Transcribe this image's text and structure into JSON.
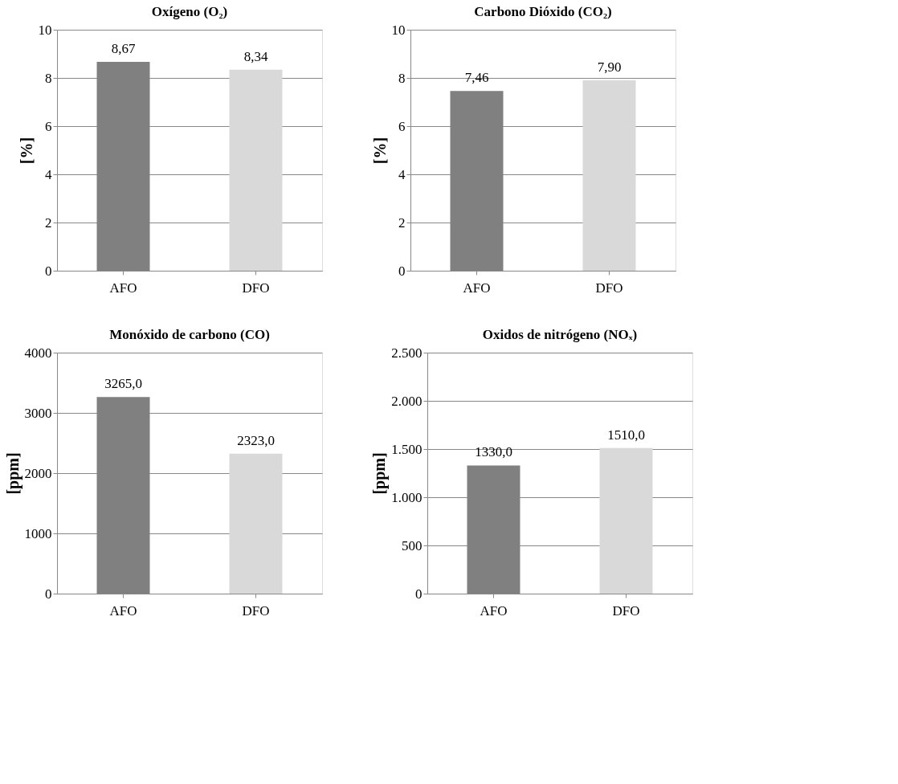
{
  "chart_data": [
    {
      "type": "bar",
      "title": "Oxígeno (O₂)",
      "ylabel": "[%]",
      "categories": [
        "AFO",
        "DFO"
      ],
      "values": [
        8.67,
        8.34
      ],
      "colors": [
        "#808080",
        "#d9d9d9"
      ],
      "value_labels": [
        "8,67",
        "8,34"
      ],
      "ylim": [
        0,
        10
      ],
      "yticks": [
        0,
        2,
        4,
        6,
        8,
        10
      ],
      "grid": "y"
    },
    {
      "type": "bar",
      "title": "Carbono Dióxido (CO₂)",
      "ylabel": "[%]",
      "categories": [
        "AFO",
        "DFO"
      ],
      "values": [
        7.46,
        7.9
      ],
      "colors": [
        "#808080",
        "#d9d9d9"
      ],
      "value_labels": [
        "7,46",
        "7,90"
      ],
      "ylim": [
        0,
        10
      ],
      "yticks": [
        0,
        2,
        4,
        6,
        8,
        10
      ],
      "grid": "y"
    },
    {
      "type": "bar",
      "title": "Monóxido de carbono (CO)",
      "ylabel": "[ppm]",
      "categories": [
        "AFO",
        "DFO"
      ],
      "values": [
        3265.0,
        2323.0
      ],
      "colors": [
        "#808080",
        "#d9d9d9"
      ],
      "value_labels": [
        "3265,0",
        "2323,0"
      ],
      "ylim": [
        0,
        4000
      ],
      "yticks": [
        0,
        1000,
        2000,
        3000,
        4000
      ],
      "grid": "y"
    },
    {
      "type": "bar",
      "title": "Oxidos de nitrógeno (NOₓ)",
      "ylabel": "[ppm]",
      "categories": [
        "AFO",
        "DFO"
      ],
      "values": [
        1330.0,
        1510.0
      ],
      "colors": [
        "#808080",
        "#d9d9d9"
      ],
      "value_labels": [
        "1330,0",
        "1510,0"
      ],
      "ylim": [
        0,
        2500
      ],
      "yticks": [
        0,
        {
          "value": 500,
          "label": "500"
        },
        {
          "value": 1000,
          "label": "1.000"
        },
        {
          "value": 1500,
          "label": "1.500"
        },
        {
          "value": 2000,
          "label": "2.000"
        },
        {
          "value": 2500,
          "label": "2.500"
        }
      ],
      "grid": "y"
    }
  ]
}
